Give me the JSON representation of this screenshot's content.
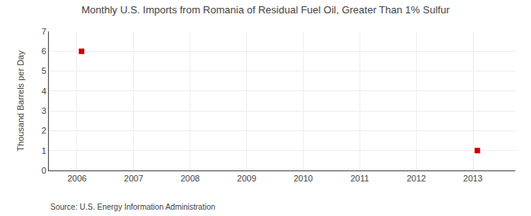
{
  "chart_data": {
    "type": "scatter",
    "title": "Monthly U.S. Imports from Romania of Residual Fuel Oil, Greater Than 1% Sulfur",
    "y_label": "Thousand Barrels per Day",
    "annotations": [
      "Source: U.S. Energy Information Administration"
    ],
    "x": [
      2006.08,
      2013.08
    ],
    "values": [
      6,
      1
    ],
    "color": "#CC0000",
    "marker": "square",
    "xlim": [
      2005.5,
      2013.75
    ],
    "ylim": [
      0,
      7
    ],
    "xticks": [
      2006,
      2007,
      2008,
      2009,
      2010,
      2011,
      2012,
      2013
    ],
    "yticks": [
      0,
      1,
      2,
      3,
      4,
      5,
      6,
      7
    ],
    "grid": true
  }
}
